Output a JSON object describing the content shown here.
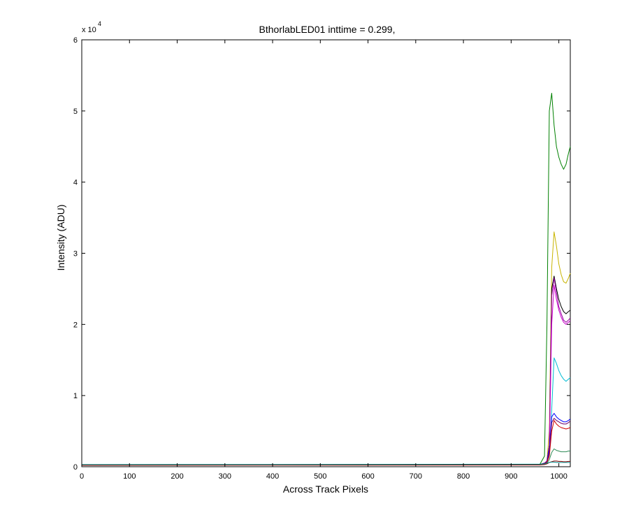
{
  "chart_data": {
    "type": "line",
    "title": "BthorlabLED01 inttime = 0.299,",
    "xlabel": "Across Track Pixels",
    "ylabel": "Intensity (ADU)",
    "y_multiplier_label": "x 10",
    "y_multiplier_exponent": "4",
    "xlim": [
      0,
      1024
    ],
    "ylim": [
      0,
      60000
    ],
    "xticks": [
      0,
      100,
      200,
      300,
      400,
      500,
      600,
      700,
      800,
      900,
      1000
    ],
    "xtick_labels": [
      "0",
      "100",
      "200",
      "300",
      "400",
      "500",
      "600",
      "700",
      "800",
      "900",
      "1000"
    ],
    "yticks": [
      0,
      10000,
      20000,
      30000,
      40000,
      50000,
      60000
    ],
    "ytick_labels": [
      "0",
      "1",
      "2",
      "3",
      "4",
      "5",
      "6"
    ],
    "grid": false,
    "legend": "none",
    "series": [
      {
        "color": "#008000",
        "x": [
          0,
          960,
          970,
          975,
          980,
          985,
          990,
          995,
          1000,
          1005,
          1010,
          1015,
          1020,
          1024
        ],
        "y": [
          250,
          300,
          1500,
          20000,
          50000,
          52500,
          48000,
          45000,
          43500,
          42500,
          41800,
          42500,
          44000,
          45000
        ]
      },
      {
        "color": "#c8b400",
        "x": [
          0,
          960,
          970,
          975,
          980,
          985,
          990,
          995,
          1000,
          1005,
          1010,
          1015,
          1020,
          1024
        ],
        "y": [
          250,
          300,
          500,
          800,
          5000,
          28000,
          33000,
          31000,
          28500,
          27000,
          26000,
          25800,
          26500,
          27200
        ]
      },
      {
        "color": "#000000",
        "x": [
          0,
          960,
          970,
          975,
          980,
          985,
          990,
          995,
          1000,
          1005,
          1010,
          1015,
          1020,
          1024
        ],
        "y": [
          250,
          300,
          500,
          800,
          3000,
          25000,
          26800,
          25000,
          23500,
          22500,
          21800,
          21500,
          21800,
          22000
        ]
      },
      {
        "color": "#9400a0",
        "x": [
          0,
          960,
          970,
          975,
          980,
          985,
          990,
          995,
          1000,
          1005,
          1010,
          1015,
          1020,
          1024
        ],
        "y": [
          250,
          300,
          500,
          800,
          3000,
          24000,
          26500,
          24500,
          22500,
          21500,
          20600,
          20300,
          20600,
          20900
        ]
      },
      {
        "color": "#cc00cc",
        "x": [
          0,
          960,
          970,
          975,
          980,
          985,
          990,
          995,
          1000,
          1005,
          1010,
          1015,
          1020,
          1024
        ],
        "y": [
          250,
          300,
          500,
          800,
          2000,
          20000,
          25500,
          23500,
          22000,
          21000,
          20300,
          20000,
          20300,
          20500
        ]
      },
      {
        "color": "#00bcd4",
        "x": [
          0,
          960,
          970,
          975,
          980,
          985,
          990,
          995,
          1000,
          1005,
          1010,
          1015,
          1020,
          1024
        ],
        "y": [
          250,
          300,
          500,
          700,
          1500,
          8000,
          15300,
          14500,
          13500,
          12800,
          12300,
          12000,
          12300,
          12500
        ]
      },
      {
        "color": "#0000ff",
        "x": [
          0,
          960,
          970,
          975,
          980,
          985,
          990,
          995,
          1000,
          1005,
          1010,
          1015,
          1020,
          1024
        ],
        "y": [
          250,
          300,
          500,
          700,
          2500,
          7000,
          7500,
          7000,
          6700,
          6500,
          6300,
          6300,
          6500,
          6700
        ]
      },
      {
        "color": "#6a006a",
        "x": [
          0,
          960,
          970,
          975,
          980,
          985,
          990,
          995,
          1000,
          1005,
          1010,
          1015,
          1020,
          1024
        ],
        "y": [
          250,
          300,
          500,
          700,
          2000,
          6200,
          6800,
          6500,
          6300,
          6100,
          6000,
          6000,
          6200,
          6400
        ]
      },
      {
        "color": "#d00000",
        "x": [
          0,
          960,
          970,
          975,
          980,
          985,
          990,
          995,
          1000,
          1005,
          1010,
          1015,
          1020,
          1024
        ],
        "y": [
          250,
          300,
          400,
          600,
          1500,
          5000,
          6500,
          6000,
          5700,
          5500,
          5400,
          5300,
          5400,
          5500
        ]
      },
      {
        "color": "#2e8b57",
        "x": [
          0,
          960,
          970,
          975,
          980,
          985,
          990,
          995,
          1000,
          1005,
          1010,
          1015,
          1020,
          1024
        ],
        "y": [
          250,
          300,
          400,
          500,
          1000,
          2000,
          2500,
          2300,
          2200,
          2100,
          2100,
          2100,
          2200,
          2200
        ]
      },
      {
        "color": "#8b0000",
        "x": [
          0,
          960,
          970,
          975,
          980,
          985,
          990,
          995,
          1000,
          1005,
          1010,
          1015,
          1020,
          1024
        ],
        "y": [
          200,
          250,
          300,
          400,
          600,
          700,
          800,
          800,
          750,
          750,
          700,
          700,
          750,
          750
        ]
      },
      {
        "color": "#008b8b",
        "x": [
          0,
          960,
          970,
          975,
          980,
          985,
          990,
          995,
          1000,
          1005,
          1010,
          1015,
          1020,
          1024
        ],
        "y": [
          300,
          350,
          400,
          500,
          600,
          650,
          650,
          600,
          600,
          600,
          600,
          600,
          600,
          600
        ]
      }
    ]
  }
}
